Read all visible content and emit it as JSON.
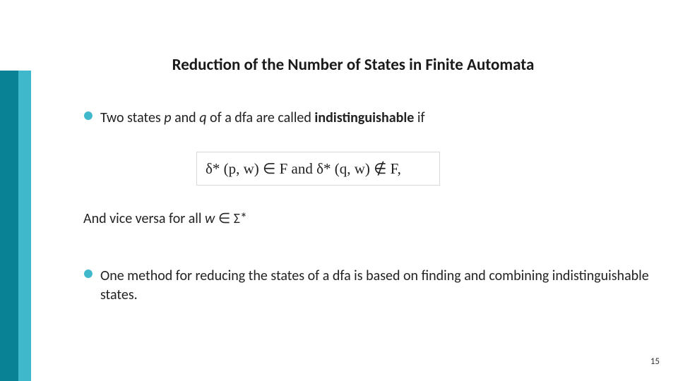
{
  "slide": {
    "title": "Reduction of the Number of States in Finite Automata",
    "bullet1_prefix": "Two states ",
    "bullet1_p": "p",
    "bullet1_mid1": " and ",
    "bullet1_q": "q",
    "bullet1_mid2": " of a dfa are called ",
    "bullet1_bold": "indistinguishable",
    "bullet1_suffix": " if",
    "formula": "δ* (p, w) ∈ F and δ* (q, w) ∉ F,",
    "continuation_prefix": "And vice versa for all ",
    "continuation_w": "w",
    "continuation_suffix": " ∈ Σ*",
    "bullet2": "One method for reducing the states of a dfa is based on finding and combining indistinguishable states.",
    "page_number": "15"
  },
  "style": {
    "stripe_dark": "#088294",
    "stripe_light": "#3fb8cc",
    "bullet_color": "#3fb8cc",
    "title_fontsize": 23,
    "body_fontsize": 20,
    "background": "#ffffff"
  }
}
